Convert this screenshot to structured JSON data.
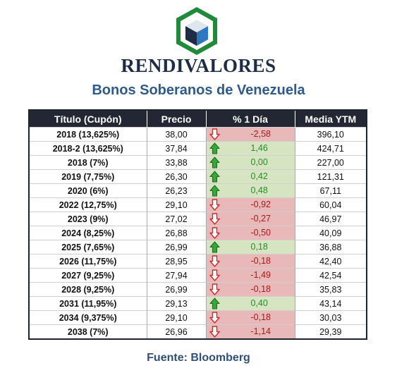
{
  "brand": "RENDIVALORES",
  "subtitle": "Bonos Soberanos de Venezuela",
  "table": {
    "headers": [
      "Título (Cupón)",
      "Precio",
      "% 1 Día",
      "Media YTM"
    ],
    "rows": [
      {
        "title": "2018 (13,625%)",
        "price": "38,00",
        "change": "-2,58",
        "direction": "down",
        "ytm": "396,10"
      },
      {
        "title": "2018-2 (13,625%)",
        "price": "37,84",
        "change": "1,46",
        "direction": "up",
        "ytm": "424,71"
      },
      {
        "title": "2018 (7%)",
        "price": "33,88",
        "change": "0,00",
        "direction": "up",
        "ytm": "227,00"
      },
      {
        "title": "2019 (7,75%)",
        "price": "26,30",
        "change": "0,42",
        "direction": "up",
        "ytm": "121,31"
      },
      {
        "title": "2020 (6%)",
        "price": "26,23",
        "change": "0,48",
        "direction": "up",
        "ytm": "67,11"
      },
      {
        "title": "2022 (12,75%)",
        "price": "29,10",
        "change": "-0,92",
        "direction": "down",
        "ytm": "60,04"
      },
      {
        "title": "2023 (9%)",
        "price": "27,02",
        "change": "-0,27",
        "direction": "down",
        "ytm": "46,97"
      },
      {
        "title": "2024 (8,25%)",
        "price": "26,88",
        "change": "-0,50",
        "direction": "down",
        "ytm": "40,09"
      },
      {
        "title": "2025 (7,65%)",
        "price": "26,99",
        "change": "0,18",
        "direction": "up",
        "ytm": "36,88"
      },
      {
        "title": "2026 (11,75%)",
        "price": "28,95",
        "change": "-0,18",
        "direction": "down",
        "ytm": "42,40"
      },
      {
        "title": "2027 (9,25%)",
        "price": "27,94",
        "change": "-1,49",
        "direction": "down",
        "ytm": "42,54"
      },
      {
        "title": "2028 (9,25%)",
        "price": "26,99",
        "change": "-0,18",
        "direction": "down",
        "ytm": "35,83"
      },
      {
        "title": "2031 (11,95%)",
        "price": "29,13",
        "change": "0,40",
        "direction": "up",
        "ytm": "43,14"
      },
      {
        "title": "2034 (9,375%)",
        "price": "29,10",
        "change": "-0,18",
        "direction": "down",
        "ytm": "30,03"
      },
      {
        "title": "2038 (7%)",
        "price": "26,96",
        "change": "-1,14",
        "direction": "down",
        "ytm": "29,39"
      }
    ]
  },
  "source": "Fuente: Bloomberg",
  "colors": {
    "header_bg": "#232633",
    "negative_bg": "#e9b9b9",
    "positive_bg": "#d7e4c2",
    "negative_text": "#a61b1b",
    "positive_text": "#2c8a2c",
    "brand_text": "#1f2c45",
    "subtitle_text": "#2f5b8c"
  },
  "icons": {
    "logo": "cube-in-hexagon-logo",
    "down": "red-down-arrow-icon",
    "up": "green-up-arrow-icon"
  }
}
